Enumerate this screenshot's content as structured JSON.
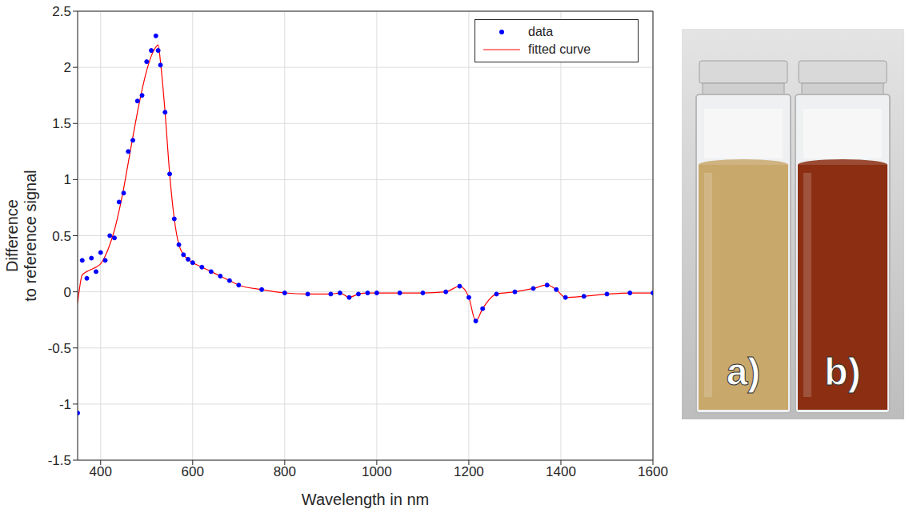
{
  "chart_data": {
    "type": "line",
    "x_label": "Wavelength in nm",
    "y_label": "Difference to reference signal",
    "xlim": [
      350,
      1600
    ],
    "xticks": [
      400,
      600,
      800,
      1000,
      1200,
      1400,
      1600
    ],
    "ylim": [
      -1.5,
      2.5
    ],
    "yticks": [
      -1.5,
      -1,
      -0.5,
      0,
      0.5,
      1,
      1.5,
      2,
      2.5
    ],
    "grid": true,
    "legend": "top right",
    "x": [
      350,
      360,
      370,
      380,
      390,
      400,
      410,
      420,
      430,
      440,
      450,
      460,
      470,
      480,
      490,
      500,
      510,
      520,
      525,
      530,
      540,
      550,
      560,
      570,
      580,
      590,
      600,
      620,
      640,
      660,
      680,
      700,
      750,
      800,
      850,
      900,
      920,
      940,
      960,
      980,
      1000,
      1050,
      1100,
      1150,
      1180,
      1200,
      1215,
      1230,
      1260,
      1300,
      1340,
      1370,
      1390,
      1410,
      1450,
      1500,
      1550,
      1600
    ],
    "series": [
      {
        "name": "data",
        "type": "scatter",
        "marker": "o",
        "color": "#0000ff",
        "values": [
          -1.08,
          0.28,
          0.12,
          0.3,
          0.18,
          0.35,
          0.28,
          0.5,
          0.48,
          0.8,
          0.88,
          1.25,
          1.35,
          1.7,
          1.75,
          2.05,
          2.15,
          2.28,
          2.15,
          2.02,
          1.6,
          1.05,
          0.65,
          0.42,
          0.33,
          0.29,
          0.26,
          0.22,
          0.18,
          0.14,
          0.1,
          0.06,
          0.02,
          -0.01,
          -0.02,
          -0.02,
          -0.01,
          -0.05,
          -0.02,
          -0.01,
          -0.01,
          -0.01,
          -0.01,
          0.0,
          0.05,
          -0.05,
          -0.26,
          -0.15,
          -0.02,
          0.0,
          0.03,
          0.06,
          0.02,
          -0.05,
          -0.04,
          -0.02,
          -0.01,
          -0.01
        ]
      },
      {
        "name": "fitted curve",
        "type": "line",
        "line_style": "solid",
        "color": "#ff0000",
        "values": [
          -0.1,
          0.15,
          0.18,
          0.2,
          0.22,
          0.25,
          0.32,
          0.42,
          0.55,
          0.72,
          0.92,
          1.15,
          1.38,
          1.6,
          1.8,
          1.97,
          2.1,
          2.18,
          2.2,
          2.05,
          1.6,
          1.05,
          0.65,
          0.42,
          0.33,
          0.29,
          0.26,
          0.22,
          0.18,
          0.14,
          0.1,
          0.06,
          0.02,
          -0.01,
          -0.02,
          -0.02,
          -0.01,
          -0.05,
          -0.02,
          -0.01,
          -0.01,
          -0.01,
          -0.01,
          0.0,
          0.05,
          -0.05,
          -0.26,
          -0.15,
          -0.02,
          0.0,
          0.03,
          0.06,
          0.02,
          -0.05,
          -0.04,
          -0.02,
          -0.01,
          -0.01
        ]
      }
    ]
  },
  "photo": {
    "vials": [
      {
        "label": "a)",
        "color": "#c9a86c"
      },
      {
        "label": "b)",
        "color": "#8c2e12"
      }
    ]
  }
}
